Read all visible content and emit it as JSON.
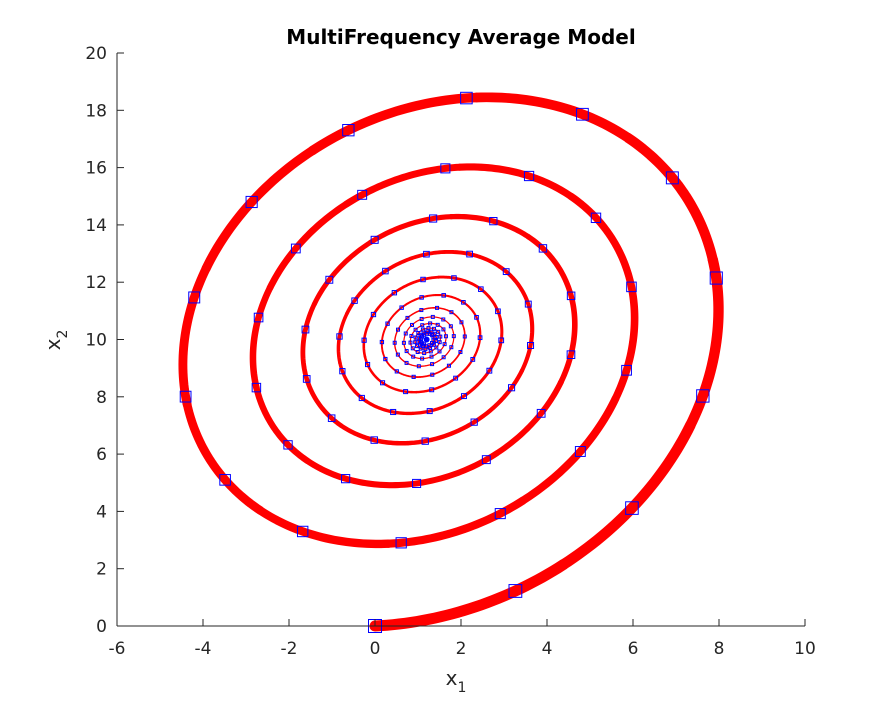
{
  "chart_data": {
    "type": "line",
    "title": "MultiFrequency Average Model",
    "xlabel": "x",
    "xlabel_sub": "1",
    "ylabel": "x",
    "ylabel_sub": "2",
    "xlim": [
      -6,
      10
    ],
    "ylim": [
      0,
      20
    ],
    "xticks": [
      -6,
      -4,
      -2,
      0,
      2,
      4,
      6,
      8,
      10
    ],
    "yticks": [
      0,
      2,
      4,
      6,
      8,
      10,
      12,
      14,
      16,
      18,
      20
    ],
    "grid": false,
    "series": [
      {
        "style": "thick solid line",
        "color": "#ff0000",
        "description_points": {
          "start": [
            0,
            0
          ],
          "center": [
            1.2,
            10
          ],
          "turns": 12,
          "extremes": {
            "outer_top": [
              2.2,
              17.95
            ],
            "outer_left": [
              -5.25,
              10
            ],
            "outer_right": [
              9.25,
              10
            ],
            "ring2_top": [
              1.9,
              15.1
            ],
            "ring2_bottom": [
              1.0,
              3.6
            ],
            "ring3_top": [
              1.5,
              13.3
            ],
            "ring3_bottom": [
              1.2,
              5.85
            ]
          }
        }
      },
      {
        "style": "square markers",
        "color": "#0000ff",
        "sampled_on": "same trajectory"
      }
    ],
    "colors": {
      "line": "#ff0000",
      "marker": "#0000ff",
      "axis": "#262626"
    }
  }
}
